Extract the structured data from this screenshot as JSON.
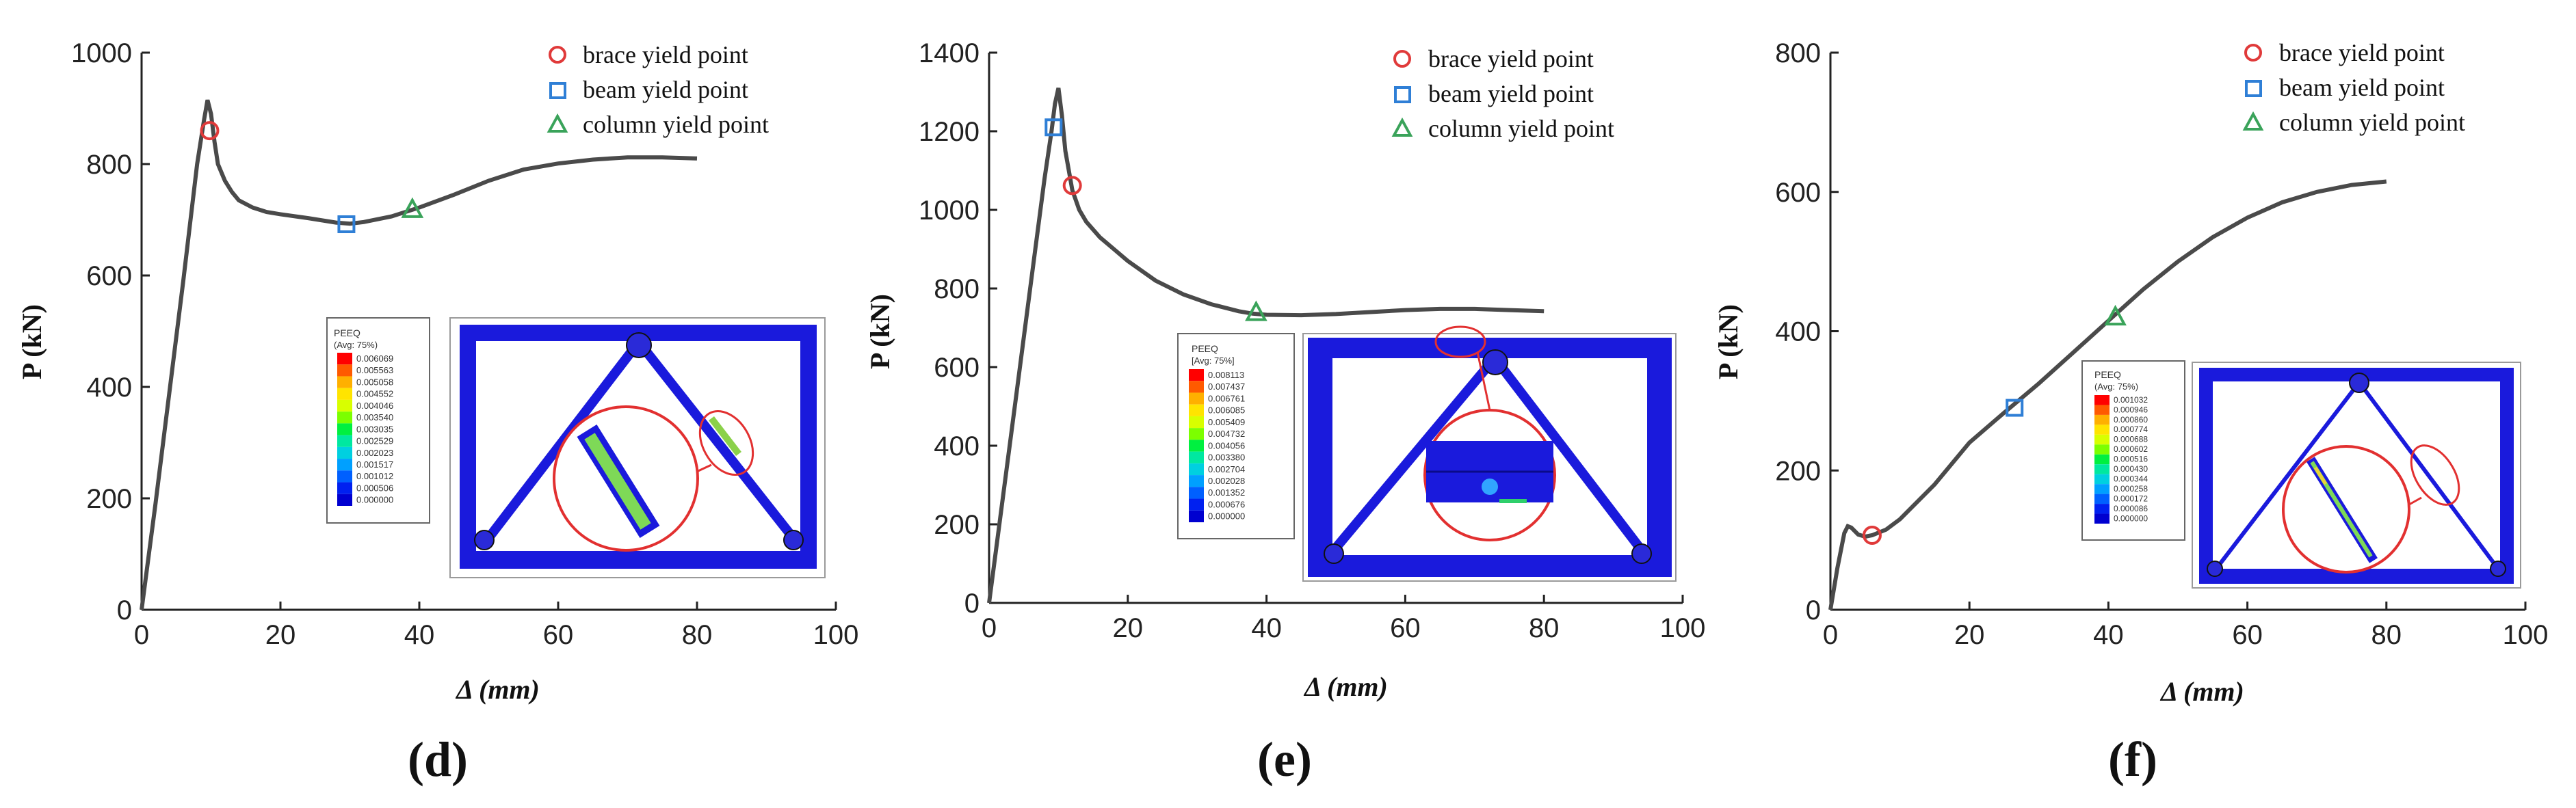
{
  "chart_data": [
    {
      "type": "line",
      "panel_label": "(d)",
      "xlabel": "Δ (mm)",
      "ylabel": "P (kN)",
      "xlim": [
        0,
        100
      ],
      "ylim": [
        0,
        1000
      ],
      "xticks": [
        0,
        20,
        40,
        60,
        80,
        100
      ],
      "yticks": [
        0,
        200,
        400,
        600,
        800,
        1000
      ],
      "curve": {
        "x": [
          0,
          2,
          4,
          6,
          8,
          9,
          9.5,
          10,
          10.5,
          11,
          12,
          13,
          14,
          16,
          18,
          20,
          24,
          28,
          30,
          32,
          36,
          40,
          45,
          50,
          55,
          60,
          65,
          70,
          75,
          80
        ],
        "y": [
          0,
          190,
          390,
          590,
          800,
          880,
          915,
          890,
          840,
          800,
          770,
          750,
          735,
          722,
          714,
          710,
          703,
          695,
          693,
          696,
          706,
          722,
          745,
          770,
          790,
          801,
          808,
          812,
          812,
          810
        ]
      },
      "markers": [
        {
          "name": "brace yield point",
          "x": 9.8,
          "y": 860
        },
        {
          "name": "beam yield point",
          "x": 29.5,
          "y": 692
        },
        {
          "name": "column yield point",
          "x": 39,
          "y": 718
        }
      ],
      "legend": [
        "brace yield point",
        "beam yield point",
        "column yield point"
      ],
      "inset": {
        "title": "PEEQ",
        "subtitle": "(Avg: 75%)",
        "values": [
          "0.006069",
          "0.005563",
          "0.005058",
          "0.004552",
          "0.004046",
          "0.003540",
          "0.003035",
          "0.002529",
          "0.002023",
          "0.001517",
          "0.001012",
          "0.000506",
          "0.000000"
        ]
      }
    },
    {
      "type": "line",
      "panel_label": "(e)",
      "xlabel": "Δ (mm)",
      "ylabel": "P (kN)",
      "xlim": [
        0,
        100
      ],
      "ylim": [
        0,
        1400
      ],
      "xticks": [
        0,
        20,
        40,
        60,
        80,
        100
      ],
      "yticks": [
        0,
        200,
        400,
        600,
        800,
        1000,
        1200,
        1400
      ],
      "curve": {
        "x": [
          0,
          2,
          4,
          6,
          8,
          9,
          9.5,
          10,
          10.5,
          11,
          12,
          13,
          14,
          16,
          18,
          20,
          24,
          28,
          32,
          36,
          38,
          40,
          45,
          50,
          55,
          60,
          65,
          70,
          75,
          80
        ],
        "y": [
          0,
          270,
          540,
          810,
          1080,
          1200,
          1270,
          1310,
          1240,
          1150,
          1050,
          1000,
          970,
          930,
          900,
          870,
          820,
          785,
          760,
          742,
          736,
          733,
          732,
          735,
          740,
          745,
          748,
          748,
          745,
          742
        ]
      },
      "markers": [
        {
          "name": "beam yield point",
          "x": 9.3,
          "y": 1210
        },
        {
          "name": "brace yield point",
          "x": 12,
          "y": 1062
        },
        {
          "name": "column yield point",
          "x": 38.5,
          "y": 738
        }
      ],
      "legend": [
        "brace yield point",
        "beam yield point",
        "column yield point"
      ],
      "inset": {
        "title": "PEEQ",
        "subtitle": "[Avg: 75%]",
        "values": [
          "0.008113",
          "0.007437",
          "0.006761",
          "0.006085",
          "0.005409",
          "0.004732",
          "0.004056",
          "0.003380",
          "0.002704",
          "0.002028",
          "0.001352",
          "0.000676",
          "0.000000"
        ]
      }
    },
    {
      "type": "line",
      "panel_label": "(f)",
      "xlabel": "Δ (mm)",
      "ylabel": "P (kN)",
      "xlim": [
        0,
        100
      ],
      "ylim": [
        0,
        800
      ],
      "xticks": [
        0,
        20,
        40,
        60,
        80,
        100
      ],
      "yticks": [
        0,
        200,
        400,
        600,
        800
      ],
      "curve": {
        "x": [
          0,
          1,
          2,
          2.5,
          3,
          4,
          5,
          6,
          8,
          10,
          15,
          20,
          25,
          30,
          35,
          40,
          45,
          50,
          55,
          60,
          65,
          70,
          75,
          80
        ],
        "y": [
          0,
          60,
          110,
          120,
          118,
          108,
          105,
          107,
          115,
          130,
          180,
          240,
          283,
          325,
          370,
          415,
          460,
          500,
          535,
          563,
          585,
          600,
          610,
          615
        ]
      },
      "markers": [
        {
          "name": "brace yield point",
          "x": 6,
          "y": 107
        },
        {
          "name": "beam yield point",
          "x": 26.5,
          "y": 290
        },
        {
          "name": "column yield point",
          "x": 41,
          "y": 420
        }
      ],
      "legend": [
        "brace yield point",
        "beam yield point",
        "column yield point"
      ],
      "inset": {
        "title": "PEEQ",
        "subtitle": "(Avg: 75%)",
        "values": [
          "0.001032",
          "0.000946",
          "0.000860",
          "0.000774",
          "0.000688",
          "0.000602",
          "0.000516",
          "0.000430",
          "0.000344",
          "0.000258",
          "0.000172",
          "0.000086",
          "0.000000"
        ]
      }
    }
  ],
  "colors": {
    "curve": "#4a4a4a",
    "brace": "#e03a3a",
    "beam": "#2f7fd6",
    "column": "#3aa35a",
    "frame": "#1a1adc"
  }
}
